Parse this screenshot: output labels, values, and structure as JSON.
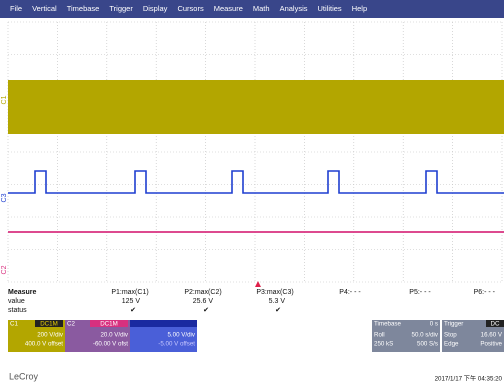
{
  "menu": [
    "File",
    "Vertical",
    "Timebase",
    "Trigger",
    "Display",
    "Cursors",
    "Measure",
    "Math",
    "Analysis",
    "Utilities",
    "Help"
  ],
  "channels": {
    "c1": "C1",
    "c3": "C3",
    "c2": "C2"
  },
  "measure": {
    "title": "Measure",
    "rows": [
      "value",
      "status"
    ],
    "columns": [
      {
        "name": "P1:max(C1)",
        "value": "125 V",
        "status": "✔"
      },
      {
        "name": "P2:max(C2)",
        "value": "25.6 V",
        "status": "✔"
      },
      {
        "name": "P3:max(C3)",
        "value": "5.3 V",
        "status": "✔"
      },
      {
        "name": "P4:- - -"
      },
      {
        "name": "P5:- - -"
      },
      {
        "name": "P6:- - -"
      }
    ]
  },
  "descriptors": [
    {
      "label": "C1",
      "coupling": "DC1M",
      "scale": "200 V/div",
      "offset": "400.0 V offset"
    },
    {
      "label": "C2",
      "coupling": "DC1M",
      "scale": "20.0 V/div",
      "offset": "-60.00 V ofst"
    },
    {
      "scale": "5.00 V/div",
      "offset": "-5.00 V offset"
    }
  ],
  "timebase": {
    "title": "Timebase",
    "delay": "0 s",
    "mode": "Roll",
    "scale": "50.0 s/div",
    "samples": "250 kS",
    "rate": "500 S/s"
  },
  "trigger": {
    "title": "Trigger",
    "coupling": "DC",
    "mode": "Stop",
    "level": "16.60 V",
    "type": "Edge",
    "slope": "Positive"
  },
  "footer": {
    "brand": "LeCroy",
    "timestamp": "2017/1/17 下午 04:35:20"
  }
}
